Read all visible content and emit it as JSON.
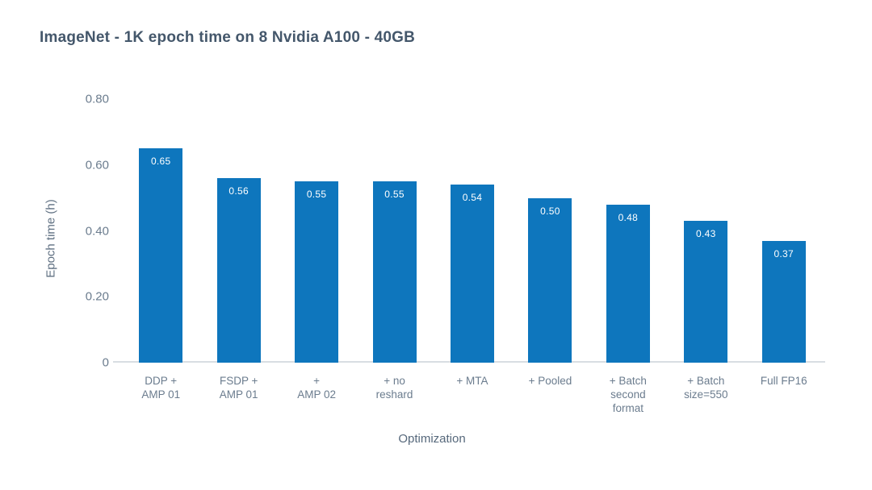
{
  "chart_data": {
    "type": "bar",
    "title": "ImageNet - 1K epoch time on 8 Nvidia A100 - 40GB",
    "xlabel": "Optimization",
    "ylabel": "Epoch time (h)",
    "categories": [
      "DDP + AMP 01",
      "FSDP + AMP 01",
      "+ AMP 02",
      "+ no reshard",
      "+ MTA",
      "+ Pooled",
      "+ Batch second format",
      "+ Batch size=550",
      "Full FP16"
    ],
    "category_lines": [
      [
        "DDP +",
        "AMP 01"
      ],
      [
        "FSDP +",
        "AMP 01"
      ],
      [
        "+",
        "AMP 02"
      ],
      [
        "+ no",
        "reshard"
      ],
      [
        "+ MTA"
      ],
      [
        "+ Pooled"
      ],
      [
        "+ Batch",
        "second",
        "format"
      ],
      [
        "+ Batch",
        "size=550"
      ],
      [
        "Full FP16"
      ]
    ],
    "values": [
      0.65,
      0.56,
      0.55,
      0.55,
      0.54,
      0.5,
      0.48,
      0.43,
      0.37
    ],
    "value_labels": [
      "0.65",
      "0.56",
      "0.55",
      "0.55",
      "0.54",
      "0.50",
      "0.48",
      "0.43",
      "0.37"
    ],
    "y_tick_labels": [
      "0",
      "0.20",
      "0.40",
      "0.60",
      "0.80"
    ],
    "y_tick_values": [
      0,
      0.2,
      0.4,
      0.6,
      0.8
    ],
    "ylim": [
      0,
      0.8
    ],
    "grid": false,
    "legend": "none",
    "colors": {
      "bar": "#0e76bd",
      "bar_value_text": "#ffffff",
      "title_text": "#44576b",
      "tick_text": "#6b7c8e",
      "axis_title_text": "#56687b",
      "axis_line": "#d8dde2",
      "background": "#ffffff"
    }
  }
}
